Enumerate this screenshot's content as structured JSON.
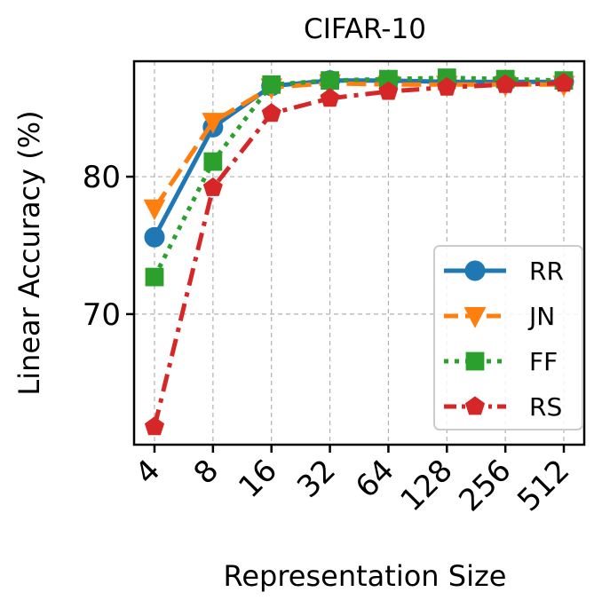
{
  "chart_data": {
    "type": "line",
    "title": "CIFAR-10",
    "xlabel": "Representation Size",
    "ylabel": "Linear Accuracy (%)",
    "categories": [
      "4",
      "8",
      "16",
      "32",
      "64",
      "128",
      "256",
      "512"
    ],
    "yticks": [
      70,
      80
    ],
    "ylim": [
      60.5,
      88.4
    ],
    "grid": true,
    "legend_position": "lower-right",
    "series": [
      {
        "name": "RR",
        "color": "#1f77b4",
        "marker": "circle",
        "dash": "solid",
        "values": [
          75.6,
          83.6,
          86.6,
          87.0,
          87.0,
          86.9,
          86.9,
          86.9
        ]
      },
      {
        "name": "JN",
        "color": "#ff7f0e",
        "marker": "tri-down",
        "dash": "dashed",
        "values": [
          77.7,
          84.0,
          86.5,
          86.8,
          86.7,
          86.7,
          86.7,
          86.7
        ]
      },
      {
        "name": "FF",
        "color": "#2ca02c",
        "marker": "square",
        "dash": "dotted",
        "values": [
          72.7,
          81.1,
          86.7,
          87.0,
          87.1,
          87.2,
          87.1,
          87.0
        ]
      },
      {
        "name": "RS",
        "color": "#d62728",
        "marker": "pentagon",
        "dash": "dashdot",
        "values": [
          61.8,
          79.2,
          84.6,
          85.7,
          86.2,
          86.5,
          86.7,
          86.8
        ]
      }
    ]
  }
}
